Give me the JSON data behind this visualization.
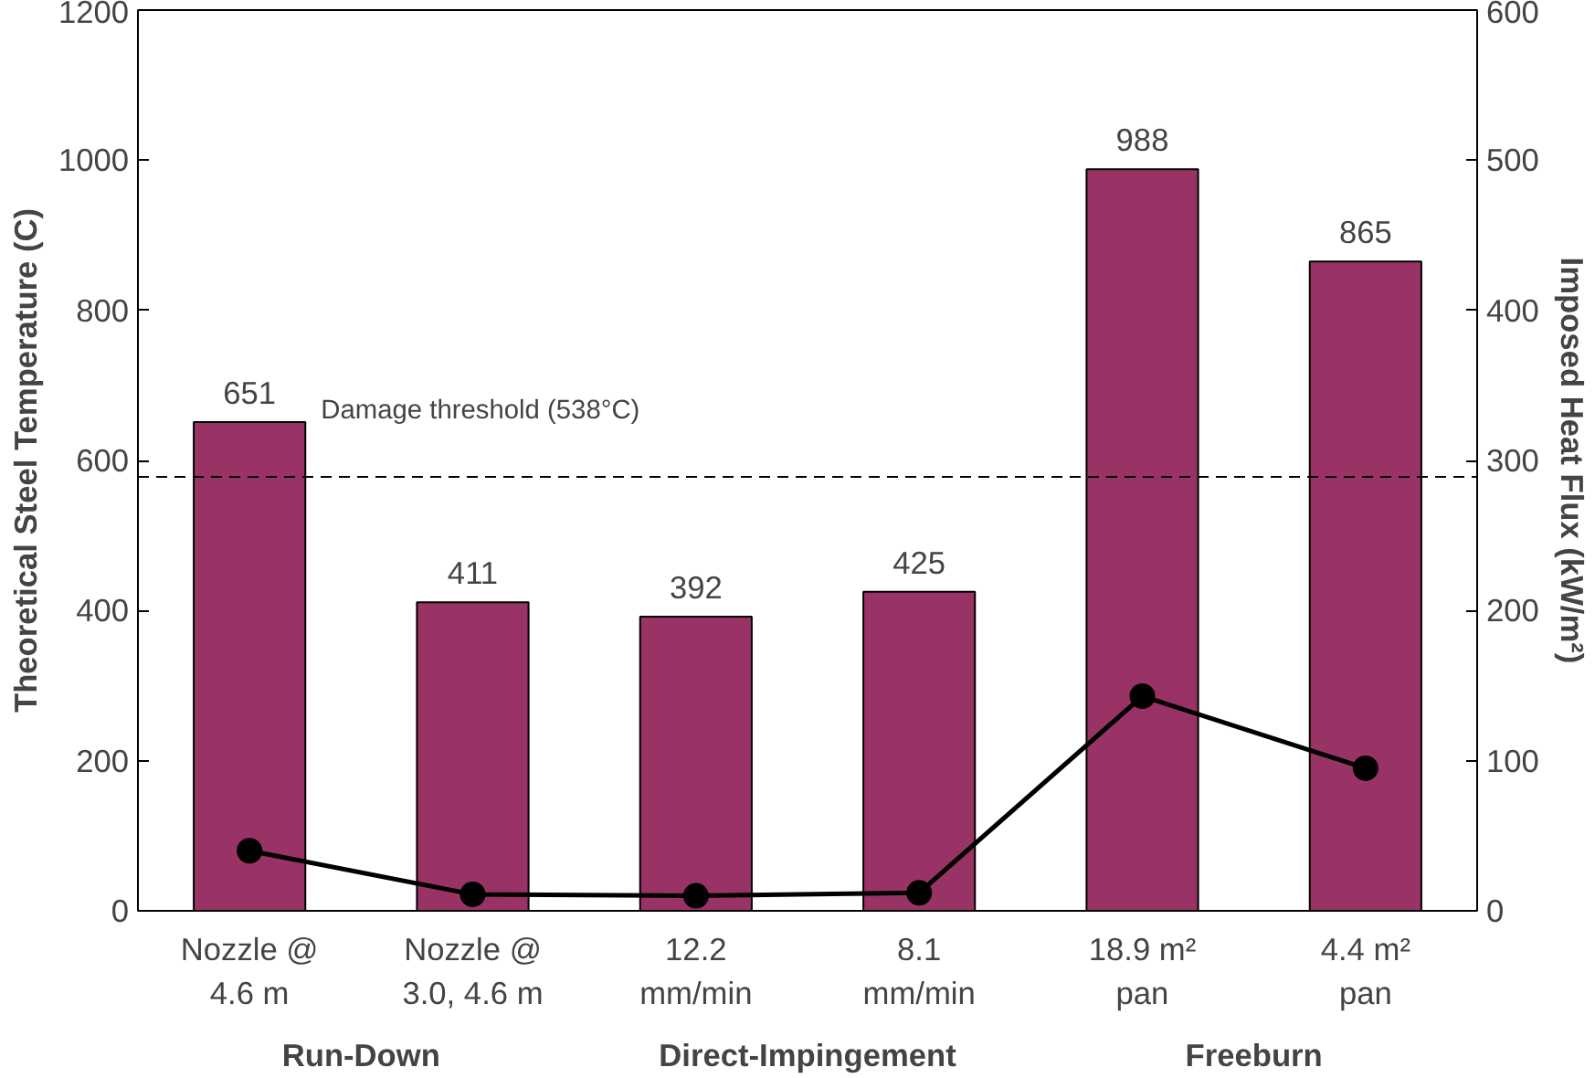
{
  "chart_data": {
    "type": "bar",
    "categories": [
      "Nozzle @\n4.6 m",
      "Nozzle @\n3.0, 4.6 m",
      "12.2\nmm/min",
      "8.1\nmm/min",
      "18.9 m²\npan",
      "4.4 m²\npan"
    ],
    "ylabel": "Theoretical Steel Temperature (C)",
    "y2label": "Imposed Heat Flux (kW/m²)",
    "ylim": [
      0,
      1200
    ],
    "yticks": [
      0,
      200,
      400,
      600,
      800,
      1000,
      1200
    ],
    "y2lim": [
      0,
      600
    ],
    "y2ticks": [
      0,
      100,
      200,
      300,
      400,
      500,
      600
    ],
    "series": [
      {
        "color": "#993366",
        "values": [
          651,
          411,
          392,
          425,
          988,
          865
        ],
        "value_labels": [
          "651",
          "411",
          "392",
          "425",
          "988",
          "865"
        ]
      },
      {
        "type": "line",
        "axis": "y2",
        "color": "#000000",
        "marker": "circle",
        "line_style": "solid",
        "values": [
          40,
          11,
          10,
          12,
          143,
          95
        ]
      }
    ],
    "ref_lines": [
      {
        "axis": "y",
        "value": 578,
        "label": "Damage threshold (538°C)",
        "line_style": "dashed",
        "color": "#000000"
      }
    ],
    "annotations": [
      "Run-Down",
      "Direct-Impingement",
      "Freeburn"
    ],
    "grid": false
  }
}
